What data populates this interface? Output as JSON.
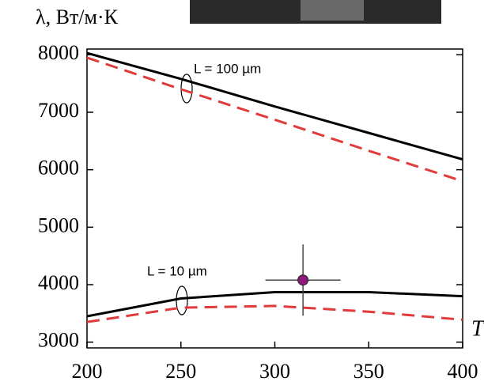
{
  "chart_data": {
    "type": "line",
    "ylabel": "λ,  Вт/м·К",
    "xlabel": "T",
    "x": [
      200,
      250,
      300,
      350,
      400
    ],
    "series": [
      {
        "color": "#000000",
        "linestyle": "solid",
        "values": [
          8030,
          7580,
          7100,
          6640,
          6180
        ]
      },
      {
        "color": "#e03a3a",
        "linestyle": "dashed",
        "values": [
          7950,
          7400,
          6870,
          6330,
          5800
        ]
      },
      {
        "color": "#000000",
        "linestyle": "solid",
        "values": [
          3450,
          3760,
          3870,
          3870,
          3800
        ]
      },
      {
        "color": "#e03a3a",
        "linestyle": "dashed",
        "values": [
          3350,
          3600,
          3630,
          3530,
          3390
        ]
      }
    ],
    "points": [
      {
        "x": 315,
        "y": 4080,
        "xerr": 20,
        "yerr": 620,
        "color": "#8b1a7a"
      }
    ],
    "annotations": [
      "L = 100 µm",
      "L = 10 µm"
    ],
    "xlim": [
      200,
      400
    ],
    "xticks": [
      200,
      250,
      300,
      350,
      400
    ],
    "ylim": [
      2900,
      8100
    ],
    "yticks": [
      3000,
      4000,
      5000,
      6000,
      7000,
      8000
    ]
  }
}
